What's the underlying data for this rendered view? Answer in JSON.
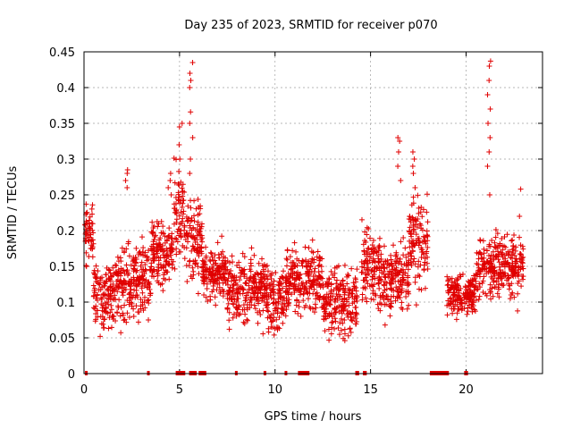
{
  "chart_data": {
    "type": "scatter",
    "title": "Day 235 of 2023, SRMTID for receiver p070",
    "xlabel": "GPS time / hours",
    "ylabel": "SRMTID / TECUs",
    "xlim": [
      0,
      24
    ],
    "ylim": [
      0,
      0.45
    ],
    "xticks": [
      0,
      5,
      10,
      15,
      20
    ],
    "yticks": [
      0,
      0.05,
      0.1,
      0.15,
      0.2,
      0.25,
      0.3,
      0.35,
      0.4,
      0.45
    ],
    "xtick_labels": [
      "0",
      "5",
      "10",
      "15",
      "20"
    ],
    "ytick_labels": [
      "0",
      "0.05",
      "0.1",
      "0.15",
      "0.2",
      "0.25",
      "0.3",
      "0.35",
      "0.4",
      "0.45"
    ],
    "grid": true,
    "marker": "+",
    "color": "#e00000",
    "series": [
      {
        "name": "SRMTID",
        "segments": [
          {
            "x_start": 0.05,
            "x_end": 0.5,
            "center": 0.19,
            "spread": 0.05
          },
          {
            "x_start": 0.5,
            "x_end": 1.5,
            "center": 0.11,
            "spread": 0.05
          },
          {
            "x_start": 1.5,
            "x_end": 2.5,
            "center": 0.12,
            "spread": 0.06
          },
          {
            "x_start": 2.5,
            "x_end": 3.5,
            "center": 0.13,
            "spread": 0.06
          },
          {
            "x_start": 3.5,
            "x_end": 4.7,
            "center": 0.17,
            "spread": 0.05
          },
          {
            "x_start": 4.7,
            "x_end": 5.3,
            "center": 0.23,
            "spread": 0.07
          },
          {
            "x_start": 5.3,
            "x_end": 6.2,
            "center": 0.19,
            "spread": 0.06
          },
          {
            "x_start": 6.2,
            "x_end": 7.5,
            "center": 0.14,
            "spread": 0.04
          },
          {
            "x_start": 7.5,
            "x_end": 9.5,
            "center": 0.12,
            "spread": 0.05
          },
          {
            "x_start": 9.5,
            "x_end": 10.5,
            "center": 0.1,
            "spread": 0.05
          },
          {
            "x_start": 10.5,
            "x_end": 12.5,
            "center": 0.13,
            "spread": 0.05
          },
          {
            "x_start": 12.5,
            "x_end": 14.3,
            "center": 0.1,
            "spread": 0.05
          },
          {
            "x_start": 14.5,
            "x_end": 15.5,
            "center": 0.15,
            "spread": 0.06
          },
          {
            "x_start": 15.5,
            "x_end": 17.0,
            "center": 0.13,
            "spread": 0.05
          },
          {
            "x_start": 17.0,
            "x_end": 18.0,
            "center": 0.18,
            "spread": 0.06
          },
          {
            "x_start": 19.0,
            "x_end": 20.5,
            "center": 0.11,
            "spread": 0.03
          },
          {
            "x_start": 20.5,
            "x_end": 21.5,
            "center": 0.15,
            "spread": 0.04
          },
          {
            "x_start": 21.5,
            "x_end": 23.0,
            "center": 0.15,
            "spread": 0.05
          }
        ],
        "peaks": [
          {
            "x": 5.6,
            "values": [
              0.435,
              0.42,
              0.41,
              0.4,
              0.366,
              0.35,
              0.33,
              0.3,
              0.28
            ]
          },
          {
            "x": 5.05,
            "values": [
              0.35,
              0.345,
              0.32,
              0.3
            ]
          },
          {
            "x": 16.5,
            "values": [
              0.33,
              0.325,
              0.31,
              0.29,
              0.27
            ]
          },
          {
            "x": 17.3,
            "values": [
              0.31,
              0.3,
              0.29,
              0.28,
              0.26
            ]
          },
          {
            "x": 21.2,
            "values": [
              0.437,
              0.43,
              0.41,
              0.39,
              0.37,
              0.35,
              0.33,
              0.31,
              0.29,
              0.25
            ]
          },
          {
            "x": 2.2,
            "values": [
              0.285,
              0.28,
              0.27,
              0.26
            ]
          },
          {
            "x": 4.5,
            "values": [
              0.28,
              0.27,
              0.26,
              0.25
            ]
          },
          {
            "x": 22.8,
            "values": [
              0.258,
              0.22
            ]
          }
        ],
        "zero_runs": [
          {
            "x_start": 0.05,
            "x_end": 0.15
          },
          {
            "x_start": 3.3,
            "x_end": 3.4
          },
          {
            "x_start": 4.8,
            "x_end": 5.3
          },
          {
            "x_start": 5.5,
            "x_end": 5.9
          },
          {
            "x_start": 6.0,
            "x_end": 6.4
          },
          {
            "x_start": 7.9,
            "x_end": 8.0
          },
          {
            "x_start": 9.4,
            "x_end": 9.5
          },
          {
            "x_start": 10.5,
            "x_end": 10.6
          },
          {
            "x_start": 11.2,
            "x_end": 11.8
          },
          {
            "x_start": 14.2,
            "x_end": 14.4
          },
          {
            "x_start": 14.6,
            "x_end": 14.8
          },
          {
            "x_start": 18.1,
            "x_end": 19.1
          },
          {
            "x_start": 19.9,
            "x_end": 20.1
          }
        ]
      }
    ]
  }
}
